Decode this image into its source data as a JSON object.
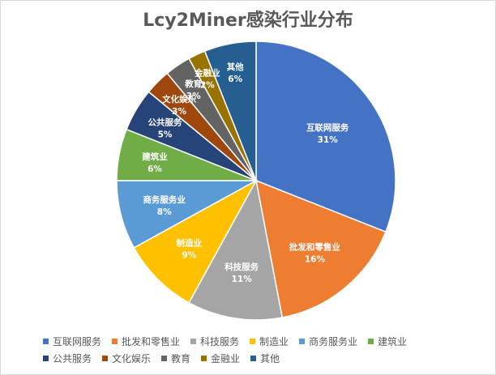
{
  "chart_data": {
    "type": "pie",
    "title": "Lcy2Miner感染行业分布",
    "slices": [
      {
        "label": "互联网服务",
        "value": 31,
        "value_label": "31%",
        "color": "#4472C4"
      },
      {
        "label": "批发和零售业",
        "value": 16,
        "value_label": "16%",
        "color": "#ED7D31"
      },
      {
        "label": "科技服务",
        "value": 11,
        "value_label": "11%",
        "color": "#A5A5A5"
      },
      {
        "label": "制造业",
        "value": 9,
        "value_label": "9%",
        "color": "#FFC000"
      },
      {
        "label": "商务服务业",
        "value": 8,
        "value_label": "8%",
        "color": "#5B9BD5"
      },
      {
        "label": "建筑业",
        "value": 6,
        "value_label": "6%",
        "color": "#70AD47"
      },
      {
        "label": "公共服务",
        "value": 5,
        "value_label": "5%",
        "color": "#264478"
      },
      {
        "label": "文化娱乐",
        "value": 3,
        "value_label": "3%",
        "color": "#9E480E"
      },
      {
        "label": "教育",
        "value": 3,
        "value_label": "3%",
        "color": "#636363"
      },
      {
        "label": "金融业",
        "value": 2,
        "value_label": "2%",
        "color": "#997300"
      },
      {
        "label": "其他",
        "value": 6,
        "value_label": "6%",
        "color": "#255E91"
      }
    ],
    "legend_position": "bottom"
  }
}
